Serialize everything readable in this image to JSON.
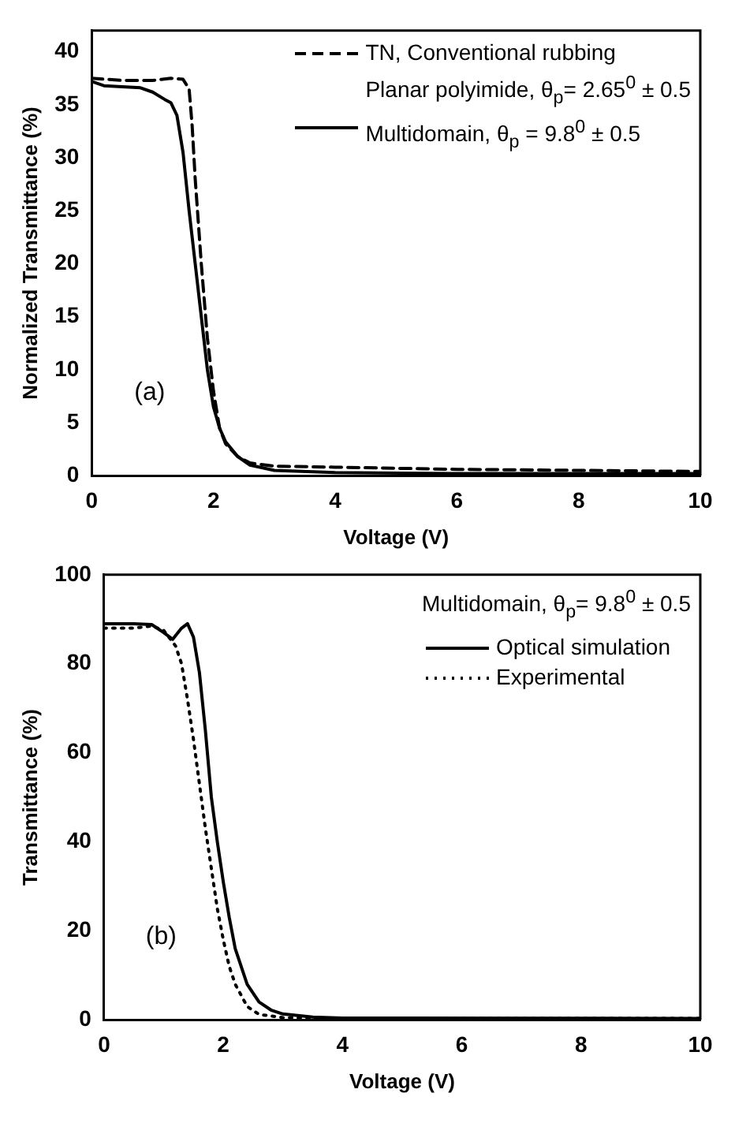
{
  "chart_data": [
    {
      "type": "line",
      "xlabel": "Voltage (V)",
      "ylabel": "Normalized Transmittance (%)",
      "xlim": [
        0,
        10
      ],
      "ylim": [
        0,
        42
      ],
      "xticks": [
        0,
        2,
        4,
        6,
        8,
        10
      ],
      "yticks": [
        0,
        5,
        10,
        15,
        20,
        25,
        30,
        35,
        40
      ],
      "grid": false,
      "legend": "top right",
      "annotations": [
        "(a)"
      ],
      "series": [
        {
          "name": "TN, Conventional rubbing\nPlanar polyimide, θ$_{p}$= 2.65$^{0}$ ± 0.5",
          "color": "#000000",
          "line_style": "dashed",
          "x": [
            0,
            0.5,
            1.0,
            1.3,
            1.5,
            1.6,
            1.65,
            1.7,
            1.8,
            1.9,
            2.0,
            2.1,
            2.2,
            2.4,
            2.6,
            3.0,
            4,
            6,
            8,
            10
          ],
          "values": [
            37.5,
            37.3,
            37.3,
            37.5,
            37.4,
            36.5,
            33,
            28,
            20,
            13,
            8,
            4.5,
            3,
            1.8,
            1.2,
            0.9,
            0.8,
            0.6,
            0.5,
            0.4
          ]
        },
        {
          "name": "Multidomain, θ$_{p}$ = 9.8$^{0}$ ± 0.5",
          "color": "#000000",
          "line_style": "solid",
          "x": [
            0,
            0.2,
            0.5,
            0.8,
            1.0,
            1.2,
            1.3,
            1.4,
            1.5,
            1.6,
            1.7,
            1.8,
            1.9,
            2.0,
            2.1,
            2.2,
            2.4,
            2.6,
            3.0,
            4,
            6,
            10
          ],
          "values": [
            37.2,
            36.8,
            36.7,
            36.6,
            36.2,
            35.5,
            35.2,
            34,
            30.5,
            25,
            20,
            15,
            10,
            6.5,
            4.5,
            3.2,
            1.8,
            1.0,
            0.5,
            0.3,
            0.2,
            0.2
          ]
        }
      ]
    },
    {
      "type": "line",
      "xlabel": "Voltage (V)",
      "ylabel": "Transmittance (%)",
      "xlim": [
        0,
        10
      ],
      "ylim": [
        0,
        100
      ],
      "xticks": [
        0,
        2,
        4,
        6,
        8,
        10
      ],
      "yticks": [
        0,
        20,
        40,
        60,
        80,
        100
      ],
      "grid": false,
      "legend": "top right",
      "legend_title": "Multidomain, θ$_{p}$= 9.8$^{0}$ ± 0.5",
      "annotations": [
        "(b)"
      ],
      "series": [
        {
          "name": "Optical simulation",
          "color": "#000000",
          "line_style": "solid",
          "x": [
            0,
            0.5,
            0.8,
            1.0,
            1.15,
            1.3,
            1.4,
            1.5,
            1.6,
            1.7,
            1.8,
            1.9,
            2.0,
            2.1,
            2.2,
            2.4,
            2.6,
            2.8,
            3.0,
            3.5,
            4,
            10
          ],
          "values": [
            89,
            89,
            88.8,
            87,
            85.5,
            88,
            89,
            86,
            78,
            65,
            50,
            40,
            31,
            23,
            16,
            8,
            4,
            2.2,
            1.3,
            0.6,
            0.4,
            0.3
          ]
        },
        {
          "name": "Experimental",
          "color": "#000000",
          "line_style": "dotted",
          "x": [
            0,
            0.5,
            0.8,
            1.0,
            1.2,
            1.3,
            1.4,
            1.5,
            1.6,
            1.7,
            1.8,
            1.9,
            2.0,
            2.1,
            2.2,
            2.4,
            2.6,
            3.0,
            4,
            10
          ],
          "values": [
            88,
            88,
            88.5,
            87.5,
            84,
            80,
            72,
            63,
            53,
            43,
            34,
            25,
            18,
            12,
            8,
            3,
            1.2,
            0.5,
            0.3,
            0.3
          ]
        }
      ]
    }
  ]
}
